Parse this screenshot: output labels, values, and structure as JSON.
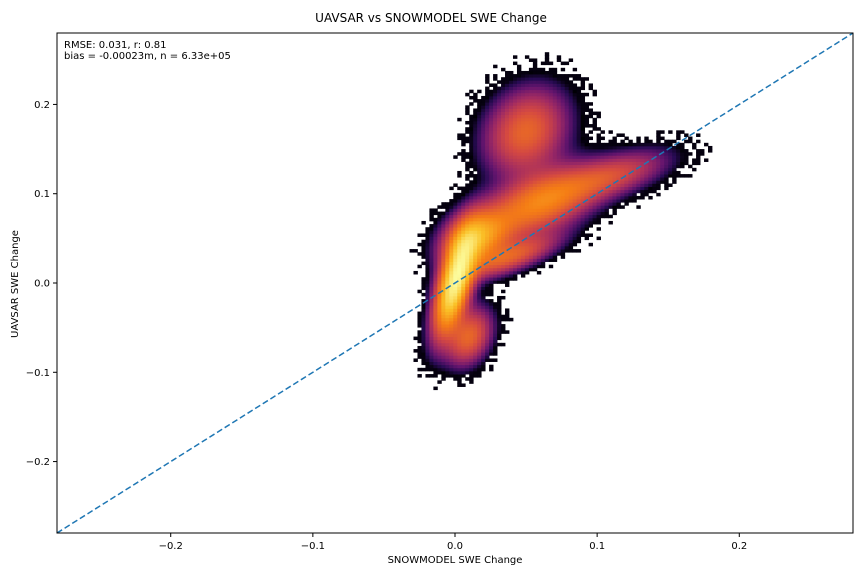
{
  "chart_data": {
    "type": "heatmap",
    "title": "UAVSAR vs SNOWMODEL SWE Change",
    "xlabel": "SNOWMODEL SWE Change",
    "ylabel": "UAVSAR SWE Change",
    "xlim": [
      -0.28,
      0.28
    ],
    "ylim": [
      -0.28,
      0.28
    ],
    "x_ticks": [
      -0.2,
      -0.1,
      0.0,
      0.1,
      0.2
    ],
    "y_ticks": [
      -0.2,
      -0.1,
      0.0,
      0.1,
      0.2
    ],
    "x_tick_labels": [
      "−0.2",
      "−0.1",
      "0.0",
      "0.1",
      "0.2"
    ],
    "y_tick_labels": [
      "−0.2",
      "−0.1",
      "0.0",
      "0.1",
      "0.2"
    ],
    "grid": false,
    "annotations": [
      "RMSE: 0.031, r: 0.81",
      "bias = -0.00023m, n = 6.33e+05"
    ],
    "one_to_one_line": {
      "style": "dashed",
      "color": "#1f77b4",
      "from": [
        -0.28,
        -0.28
      ],
      "to": [
        0.28,
        0.28
      ]
    },
    "colormap": "inferno",
    "density_clusters": [
      {
        "x": 0.0,
        "y": 0.0,
        "sx": 0.009,
        "sy": 0.035,
        "rho": 0.6,
        "weight": 1.0
      },
      {
        "x": 0.015,
        "y": 0.05,
        "sx": 0.015,
        "sy": 0.02,
        "rho": 0.3,
        "weight": 0.55
      },
      {
        "x": 0.06,
        "y": 0.09,
        "sx": 0.025,
        "sy": 0.025,
        "rho": 0.5,
        "weight": 0.45
      },
      {
        "x": 0.05,
        "y": 0.17,
        "sx": 0.018,
        "sy": 0.03,
        "rho": 0.2,
        "weight": 0.35
      },
      {
        "x": 0.11,
        "y": 0.12,
        "sx": 0.025,
        "sy": 0.018,
        "rho": 0.6,
        "weight": 0.25
      },
      {
        "x": 0.04,
        "y": 0.03,
        "sx": 0.02,
        "sy": 0.015,
        "rho": 0.7,
        "weight": 0.3
      },
      {
        "x": 0.01,
        "y": -0.06,
        "sx": 0.01,
        "sy": 0.02,
        "rho": 0.3,
        "weight": 0.35
      }
    ]
  }
}
